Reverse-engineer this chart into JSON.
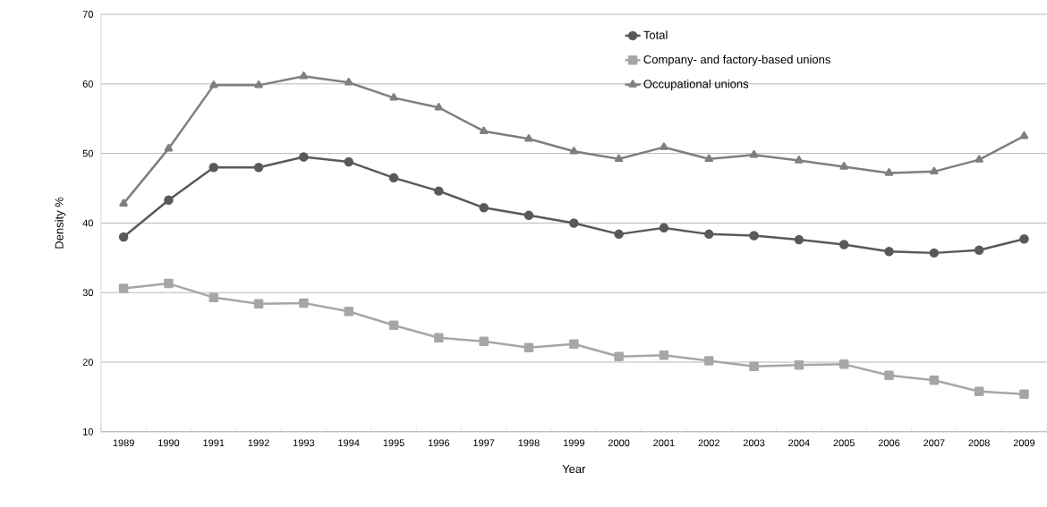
{
  "chart_data": {
    "type": "line",
    "xlabel": "Year",
    "ylabel": "Density %",
    "categories": [
      "1989",
      "1990",
      "1991",
      "1992",
      "1993",
      "1994",
      "1995",
      "1996",
      "1997",
      "1998",
      "1999",
      "2000",
      "2001",
      "2002",
      "2003",
      "2004",
      "2005",
      "2006",
      "2007",
      "2008",
      "2009"
    ],
    "series": [
      {
        "name": "Total",
        "color": "#595959",
        "marker": "circle",
        "values": [
          38.0,
          43.3,
          48.0,
          48.0,
          49.5,
          48.8,
          46.5,
          44.6,
          42.2,
          41.1,
          40.0,
          38.4,
          39.3,
          38.4,
          38.2,
          37.6,
          36.9,
          35.9,
          35.7,
          36.1,
          37.7
        ]
      },
      {
        "name": "Company- and factory-based unions",
        "color": "#a6a6a6",
        "marker": "square",
        "values": [
          30.6,
          31.3,
          29.3,
          28.4,
          28.5,
          27.3,
          25.3,
          23.5,
          23.0,
          22.1,
          22.6,
          20.8,
          21.0,
          20.2,
          19.4,
          19.6,
          19.7,
          18.1,
          17.4,
          15.8,
          15.4
        ]
      },
      {
        "name": "Occupational unions",
        "color": "#7f7f7f",
        "marker": "triangle",
        "values": [
          42.8,
          50.7,
          59.8,
          59.8,
          61.1,
          60.2,
          58.0,
          56.6,
          53.2,
          52.1,
          50.3,
          49.2,
          50.9,
          49.2,
          49.8,
          49.0,
          48.1,
          47.2,
          47.4,
          49.1,
          52.5
        ]
      }
    ],
    "ylim": [
      10,
      70
    ],
    "yticks": [
      10,
      20,
      30,
      40,
      50,
      60,
      70
    ],
    "grid": "y",
    "legend": "top",
    "line_style": "solid"
  }
}
